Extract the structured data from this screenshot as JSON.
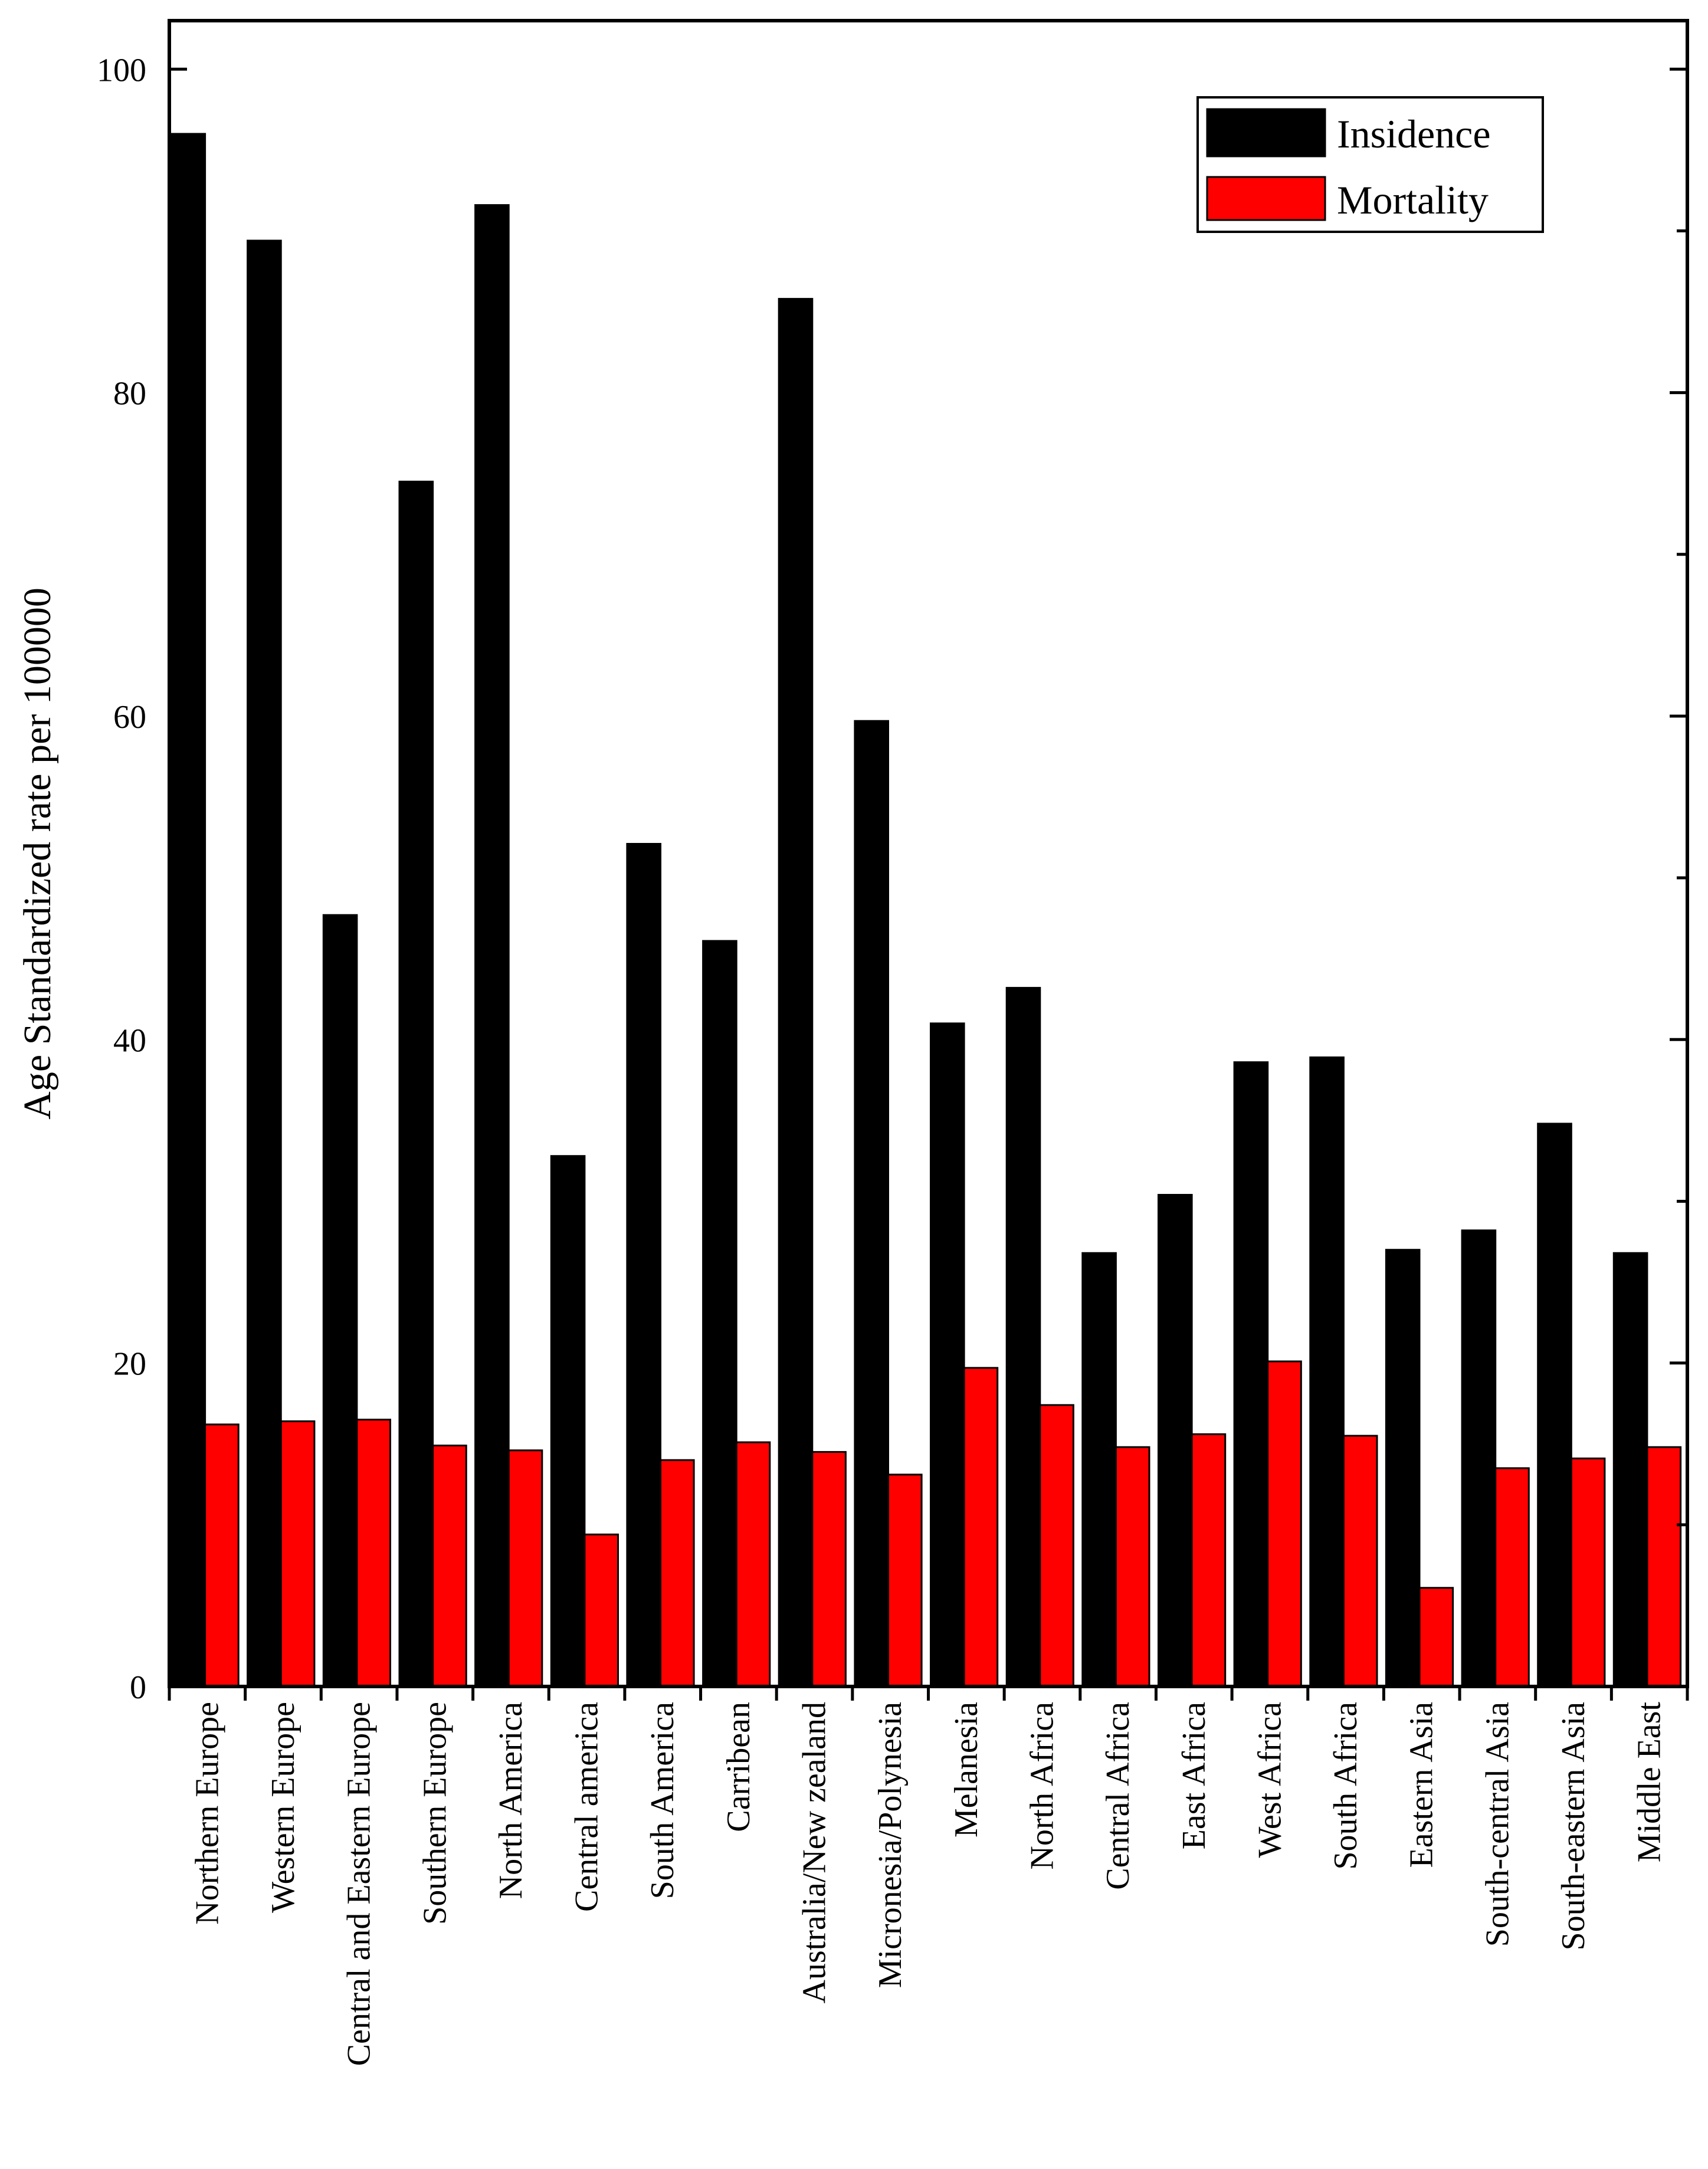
{
  "chart_data": {
    "type": "bar",
    "title": "",
    "xlabel": "",
    "ylabel": "Age Standardized rate per 100000",
    "ylim": [
      0,
      103
    ],
    "yticks": [
      0,
      20,
      40,
      60,
      80,
      100
    ],
    "minor_step": 10,
    "grid": false,
    "legend_position": "top-right",
    "categories": [
      "Northern Europe",
      "Western Europe",
      "Central and Eastern Europe",
      "Southern Europe",
      "North America",
      "Central america",
      "South America",
      "Carribean",
      "Australia/New zealand",
      "Micronesia/Polynesia",
      "Melanesia",
      "North Africa",
      "Central Africa",
      "East Africa",
      "West Africa",
      "South Africa",
      "Eastern Asia",
      "South-central Asia",
      "South-eastern Asia",
      "Middle East"
    ],
    "series": [
      {
        "name": "Insidence",
        "color": "#000000",
        "values": [
          96.0,
          89.4,
          47.7,
          74.5,
          91.6,
          32.8,
          52.1,
          46.1,
          85.8,
          59.7,
          41.0,
          43.2,
          26.8,
          30.4,
          38.6,
          38.9,
          27.0,
          28.2,
          34.8,
          26.8
        ]
      },
      {
        "name": "Mortality",
        "color": "#ff0000",
        "values": [
          16.2,
          16.4,
          16.5,
          14.9,
          14.6,
          9.4,
          14.0,
          15.1,
          14.5,
          13.1,
          19.7,
          17.4,
          14.8,
          15.6,
          20.1,
          15.5,
          6.1,
          13.5,
          14.1,
          14.8
        ]
      }
    ]
  }
}
